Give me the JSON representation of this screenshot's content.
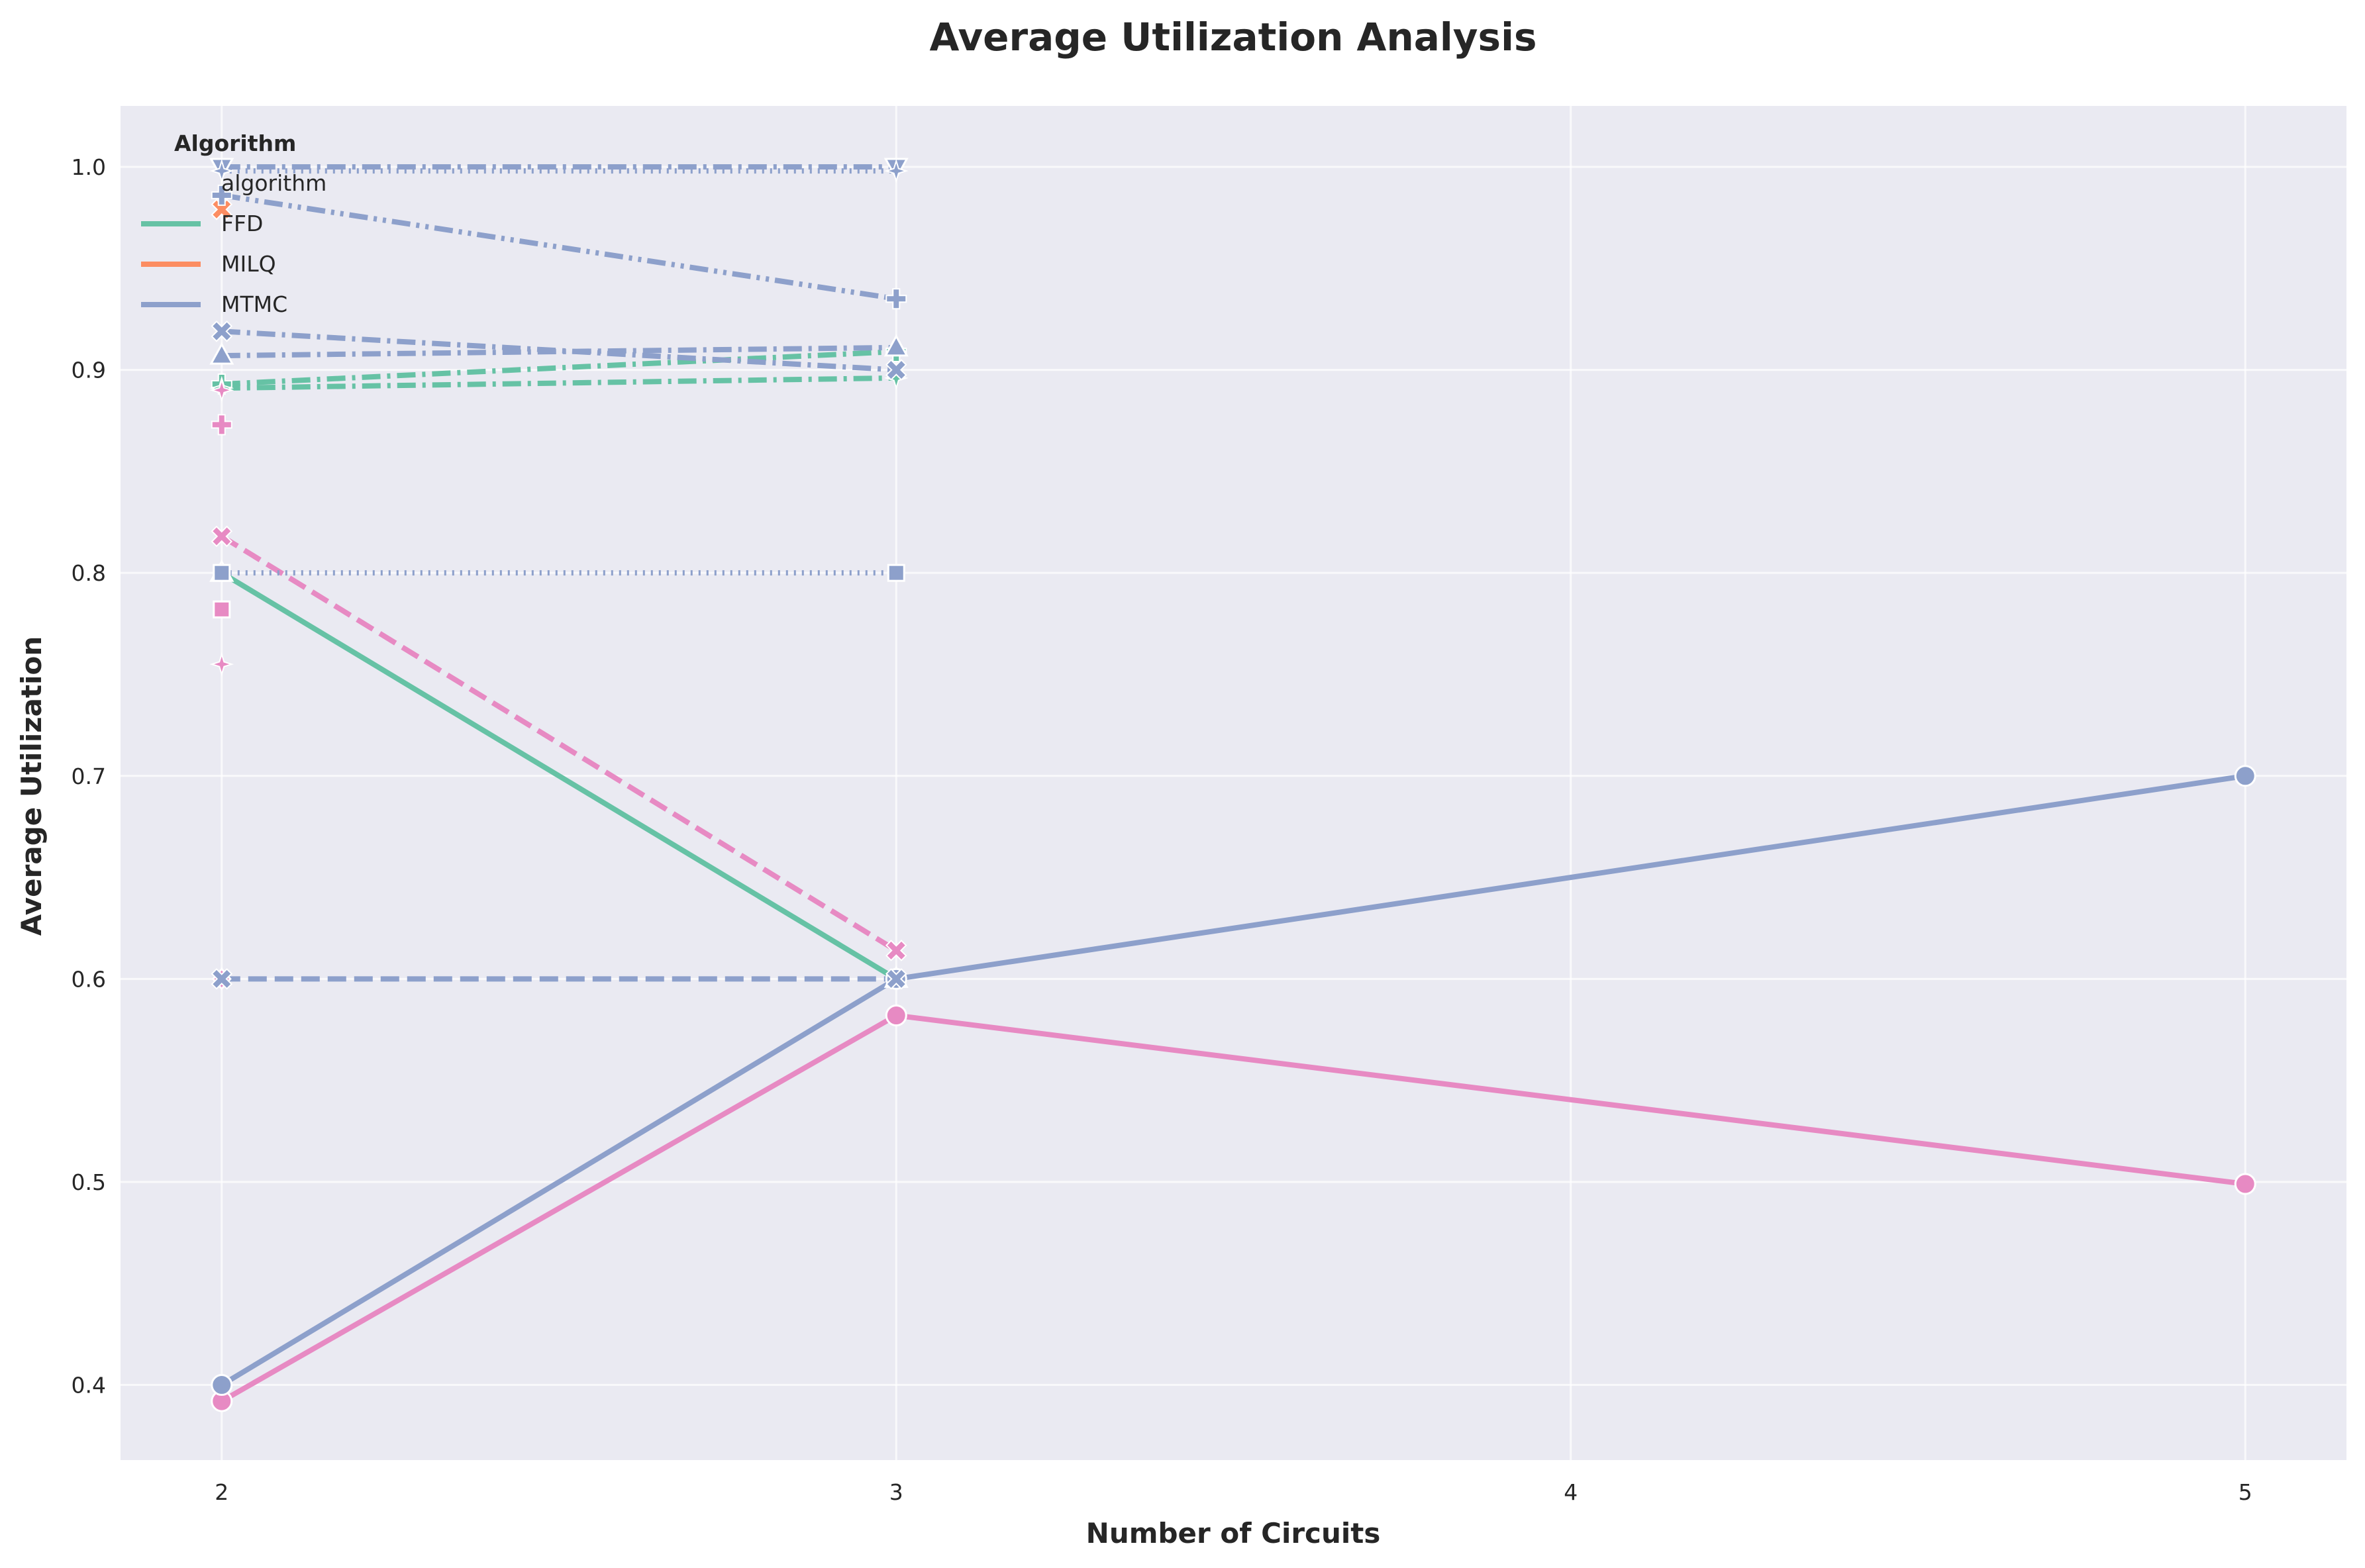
{
  "chart_data": {
    "type": "line",
    "title": "Average Utilization Analysis",
    "xlabel": "Number of Circuits",
    "ylabel": "Average Utilization",
    "x_ticks": [
      2,
      3,
      4,
      5
    ],
    "y_ticks": [
      0.4,
      0.5,
      0.6,
      0.7,
      0.8,
      0.9,
      1.0
    ],
    "xlim": [
      1.85,
      5.15
    ],
    "ylim": [
      0.363,
      1.03
    ],
    "grid": true,
    "legend": {
      "title": "Algorithm",
      "placement": "top-left",
      "entries": [
        {
          "label": "algorithm",
          "kind": "header"
        },
        {
          "label": "FFD",
          "color": "#66c2a5"
        },
        {
          "label": "MILQ",
          "color": "#fc8d62"
        },
        {
          "label": "MTMC",
          "color": "#8da0cb"
        }
      ]
    },
    "series": [
      {
        "color": "#66c2a5",
        "dash": "solid",
        "marker": "triangle-up",
        "x": [
          2,
          3
        ],
        "y": [
          0.8,
          0.6
        ]
      },
      {
        "color": "#66c2a5",
        "dash": "dashdot",
        "marker": "plus",
        "x": [
          2,
          3
        ],
        "y": [
          0.893,
          0.909
        ]
      },
      {
        "color": "#66c2a5",
        "dash": "dashdot",
        "marker": "star",
        "x": [
          2,
          3
        ],
        "y": [
          0.891,
          0.896
        ]
      },
      {
        "color": "#e78ac3",
        "dash": "solid",
        "marker": "circle",
        "x": [
          2,
          3,
          5
        ],
        "y": [
          0.392,
          0.582,
          0.499
        ]
      },
      {
        "color": "#e78ac3",
        "dash": "dashed",
        "marker": "x",
        "x": [
          2,
          3
        ],
        "y": [
          0.818,
          0.614
        ]
      },
      {
        "color": "#e78ac3",
        "dash": "none",
        "marker": "plus",
        "x": [
          2
        ],
        "y": [
          0.873
        ]
      },
      {
        "color": "#e78ac3",
        "dash": "none",
        "marker": "square",
        "x": [
          2
        ],
        "y": [
          0.782
        ]
      },
      {
        "color": "#e78ac3",
        "dash": "none",
        "marker": "star",
        "x": [
          2
        ],
        "y": [
          0.755
        ]
      },
      {
        "color": "#e78ac3",
        "dash": "none",
        "marker": "triangle-up",
        "x": [
          2
        ],
        "y": [
          0.8
        ]
      },
      {
        "color": "#e78ac3",
        "dash": "none",
        "marker": "diamond",
        "x": [
          2
        ],
        "y": [
          0.6
        ]
      },
      {
        "color": "#e78ac3",
        "dash": "none",
        "marker": "triangle-down",
        "x": [
          2
        ],
        "y": [
          1.0
        ]
      },
      {
        "color": "#e78ac3",
        "dash": "none",
        "marker": "star",
        "x": [
          2
        ],
        "y": [
          0.89
        ]
      },
      {
        "color": "#fc8d62",
        "dash": "none",
        "marker": "x",
        "x": [
          2
        ],
        "y": [
          0.979
        ]
      },
      {
        "color": "#8da0cb",
        "dash": "solid",
        "marker": "circle",
        "x": [
          2,
          3,
          5
        ],
        "y": [
          0.4,
          0.6,
          0.7
        ]
      },
      {
        "color": "#8da0cb",
        "dash": "dashed",
        "marker": "x",
        "x": [
          2,
          3
        ],
        "y": [
          0.6,
          0.6
        ]
      },
      {
        "color": "#8da0cb",
        "dash": "dotted",
        "marker": "square",
        "x": [
          2,
          3
        ],
        "y": [
          0.8,
          0.8
        ]
      },
      {
        "color": "#8da0cb",
        "dash": "dashdot",
        "marker": "triangle-up",
        "x": [
          2,
          3
        ],
        "y": [
          0.907,
          0.911
        ]
      },
      {
        "color": "#8da0cb",
        "dash": "dashdot",
        "marker": "x",
        "x": [
          2,
          3
        ],
        "y": [
          0.919,
          0.9
        ]
      },
      {
        "color": "#8da0cb",
        "dash": "dashdotdot",
        "marker": "plus",
        "x": [
          2,
          3
        ],
        "y": [
          0.986,
          0.935
        ]
      },
      {
        "color": "#8da0cb",
        "dash": "dashdot",
        "marker": "triangle-down",
        "x": [
          2,
          3
        ],
        "y": [
          1.0,
          1.0
        ]
      },
      {
        "color": "#8da0cb",
        "dash": "dotted",
        "marker": "star",
        "x": [
          2,
          3
        ],
        "y": [
          0.998,
          0.998
        ]
      }
    ]
  }
}
